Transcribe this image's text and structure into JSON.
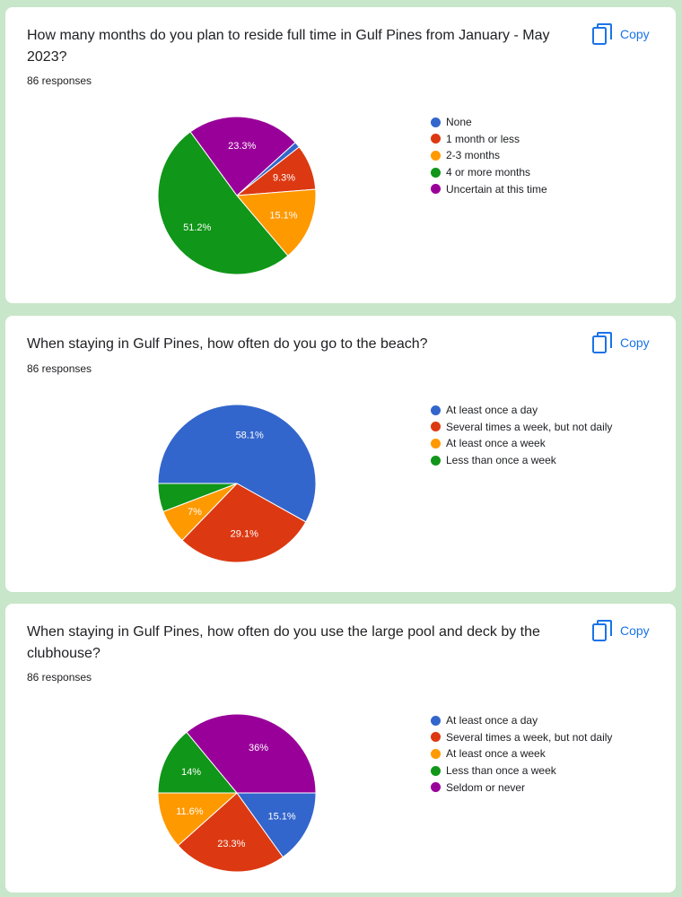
{
  "copy_label": "Copy",
  "charts": [
    {
      "question": "How many months do you plan to reside full time in Gulf Pines from January - May 2023?",
      "responses": "86 responses",
      "chart_data": {
        "type": "pie",
        "categories": [
          "None",
          "1 month or less",
          "2-3 months",
          "4 or more months",
          "Uncertain at this time"
        ],
        "values": [
          1.2,
          9.3,
          15.1,
          51.2,
          23.3
        ],
        "data_labels": [
          "",
          "9.3%",
          "15.1%",
          "51.2%",
          "23.3%"
        ],
        "colors": [
          "#3366cc",
          "#dc3912",
          "#ff9900",
          "#109618",
          "#990099"
        ],
        "legend_position": "right"
      }
    },
    {
      "question": "When staying in Gulf Pines, how often do you go to the beach?",
      "responses": "86 responses",
      "chart_data": {
        "type": "pie",
        "categories": [
          "At least once a day",
          "Several times a week, but not daily",
          "At least once a week",
          "Less than once a week"
        ],
        "values": [
          58.1,
          29.1,
          7,
          5.8
        ],
        "data_labels": [
          "58.1%",
          "29.1%",
          "7%",
          ""
        ],
        "colors": [
          "#3366cc",
          "#dc3912",
          "#ff9900",
          "#109618"
        ],
        "legend_position": "right"
      }
    },
    {
      "question": "When staying in Gulf Pines, how often do you use the large pool and deck by the clubhouse?",
      "responses": "86 responses",
      "chart_data": {
        "type": "pie",
        "categories": [
          "At least once a day",
          "Several times a week, but not daily",
          "At least once a week",
          "Less than once a week",
          "Seldom or never"
        ],
        "values": [
          15.1,
          23.3,
          11.6,
          14,
          36
        ],
        "data_labels": [
          "15.1%",
          "23.3%",
          "11.6%",
          "14%",
          "36%"
        ],
        "colors": [
          "#3366cc",
          "#dc3912",
          "#ff9900",
          "#109618",
          "#990099"
        ],
        "legend_position": "right"
      }
    }
  ]
}
